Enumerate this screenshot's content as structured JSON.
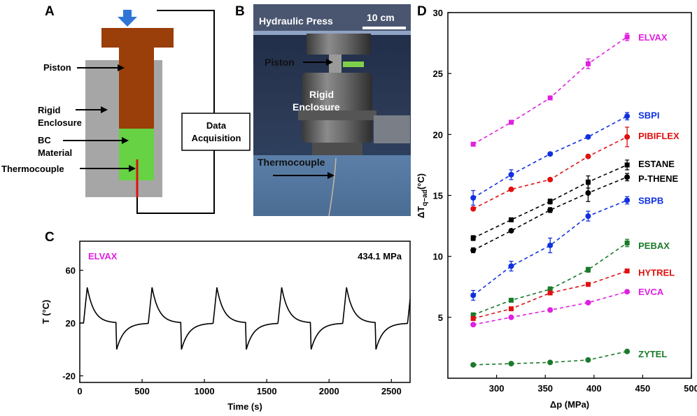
{
  "panels": {
    "a": "A",
    "b": "B",
    "c": "C",
    "d": "D"
  },
  "schematic": {
    "piston_label": "Piston",
    "enclosure_label_1": "Rigid",
    "enclosure_label_2": "Enclosure",
    "material_label_1": "BC",
    "material_label_2": "Material",
    "thermocouple_label": "Thermocouple",
    "daq_label_1": "Data",
    "daq_label_2": "Acquisition",
    "colors": {
      "piston": "#9a3e0a",
      "enclosure": "#a6a6a6",
      "material": "#66d244",
      "thermocouple": "#e01010",
      "arrow": "#2e75d6"
    }
  },
  "photo": {
    "title": "Hydraulic Press",
    "scale_label": "10 cm",
    "piston_label": "Piston",
    "enclosure_label_1": "Rigid",
    "enclosure_label_2": "Enclosure",
    "thermocouple_label": "Thermocouple"
  },
  "chart_data": [
    {
      "panel": "C",
      "type": "line",
      "series_label": "ELVAX",
      "series_color": "#e020e0",
      "annotation": "434.1 MPa",
      "xlabel": "Time (s)",
      "ylabel": "T (°C)",
      "xlim": [
        0,
        2650
      ],
      "ylim": [
        -25,
        82
      ],
      "xticks": [
        0,
        500,
        1000,
        1500,
        2000,
        2500
      ],
      "yticks": [
        -20,
        20,
        60
      ],
      "cycle": {
        "start": 30,
        "period": 520,
        "baseline": 20,
        "peak": 47,
        "trough": 0,
        "rise": 30,
        "heat_decay": 240,
        "cool_start": 260
      }
    },
    {
      "panel": "D",
      "type": "scatter",
      "xlabel": "Δp (MPa)",
      "ylabel": "ΔT_q−ad(°C)",
      "ylabel_main": "ΔT",
      "ylabel_sub": "q−ad",
      "ylabel_unit": "(°C)",
      "xlim": [
        250,
        500
      ],
      "ylim": [
        0,
        30
      ],
      "xticks": [
        300,
        350,
        400,
        450,
        500
      ],
      "yticks": [
        5,
        10,
        15,
        20,
        25,
        30
      ],
      "x": [
        276,
        315,
        355,
        394,
        434
      ],
      "series": [
        {
          "name": "ELVAX",
          "color": "#e020e0",
          "marker": "s",
          "values": [
            19.2,
            21.0,
            23.0,
            25.8,
            28.0
          ],
          "err": [
            0.1,
            0.15,
            0.15,
            0.4,
            0.3
          ],
          "label_y": 28.0
        },
        {
          "name": "SBPI",
          "color": "#1030e0",
          "marker": "o",
          "values": [
            14.8,
            16.7,
            18.4,
            19.8,
            21.5
          ],
          "err": [
            0.6,
            0.4,
            0.1,
            0.1,
            0.3
          ],
          "label_y": 21.6
        },
        {
          "name": "PIBIFLEX",
          "color": "#e01010",
          "marker": "o",
          "values": [
            13.9,
            15.5,
            16.3,
            18.2,
            19.8
          ],
          "err": [
            0.1,
            0.1,
            0.1,
            0.1,
            0.8
          ],
          "label_y": 19.9
        },
        {
          "name": "ESTANE",
          "color": "#000000",
          "marker": "s",
          "values": [
            11.5,
            13.0,
            14.5,
            16.1,
            17.5
          ],
          "err": [
            0.2,
            0.1,
            0.2,
            0.5,
            0.4
          ],
          "label_y": 17.6
        },
        {
          "name": "P-THENE",
          "color": "#000000",
          "marker": "o",
          "values": [
            10.5,
            12.1,
            13.8,
            15.2,
            16.5
          ],
          "err": [
            0.2,
            0.1,
            0.2,
            0.7,
            0.3
          ],
          "label_y": 16.4
        },
        {
          "name": "SBPB",
          "color": "#1030e0",
          "marker": "o",
          "values": [
            6.8,
            9.2,
            10.9,
            13.3,
            14.6
          ],
          "err": [
            0.4,
            0.4,
            0.6,
            0.4,
            0.3
          ],
          "label_y": 14.6
        },
        {
          "name": "PEBAX",
          "color": "#1a7a2a",
          "marker": "s",
          "values": [
            5.2,
            6.4,
            7.3,
            8.9,
            11.1
          ],
          "err": [
            0.1,
            0.1,
            0.2,
            0.2,
            0.3
          ],
          "label_y": 10.9
        },
        {
          "name": "HYTREL",
          "color": "#e01010",
          "marker": "s",
          "values": [
            4.9,
            5.7,
            7.0,
            7.7,
            8.8
          ],
          "err": [
            0.1,
            0.1,
            0.1,
            0.1,
            0.1
          ],
          "label_y": 8.7
        },
        {
          "name": "EVCA",
          "color": "#e020e0",
          "marker": "o",
          "values": [
            4.4,
            5.0,
            5.6,
            6.2,
            7.1
          ],
          "err": [
            0.1,
            0.1,
            0.1,
            0.1,
            0.1
          ],
          "label_y": 7.1
        },
        {
          "name": "ZYTEL",
          "color": "#1a7a2a",
          "marker": "o",
          "values": [
            1.1,
            1.2,
            1.3,
            1.5,
            2.2
          ],
          "err": [
            0.05,
            0.05,
            0.05,
            0.05,
            0.1
          ],
          "label_y": 2.0
        }
      ]
    }
  ]
}
